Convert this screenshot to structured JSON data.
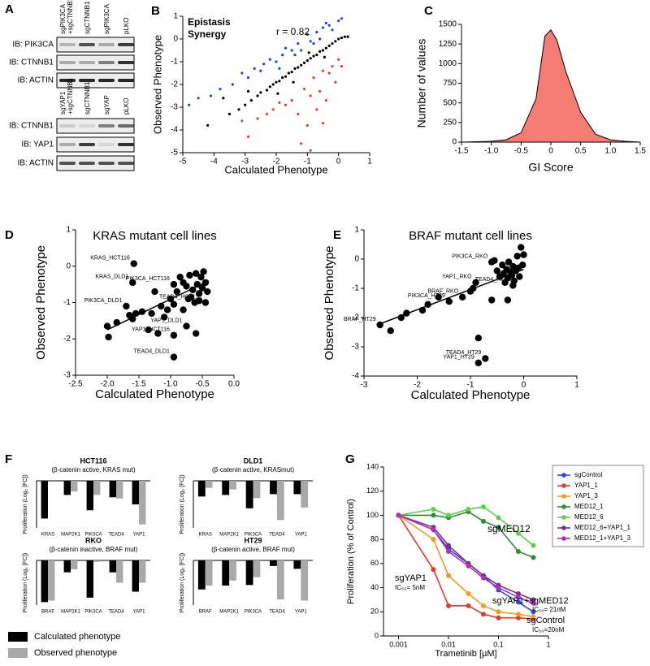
{
  "blots": {
    "panel": "A",
    "groups": [
      {
        "lanes": [
          [
            "sgPIK3CA",
            "+sgCTNNB1"
          ],
          [
            "sgCTNNB1"
          ],
          [
            "sgPIK3CA"
          ],
          [
            "pLKO"
          ]
        ],
        "rows": [
          "IB: PIK3CA",
          "IB: CTNNB1",
          "IB: ACTIN"
        ]
      },
      {
        "lanes": [
          [
            "sgYAP1",
            "+sgCTNNB1"
          ],
          [
            "sgCTNNB1"
          ],
          [
            "sgYAP"
          ],
          [
            "pLKO"
          ]
        ],
        "rows": [
          "IB: CTNNB1",
          "IB: YAP1",
          "IB: ACTIN"
        ]
      }
    ]
  },
  "chart_data": [
    {
      "type": "scatter",
      "panel": "B",
      "xlabel": "Calculated Phenotype",
      "ylabel": "Observed Phenotype",
      "annotation": "r = 0.82",
      "xlim": [
        -5,
        1
      ],
      "ylim": [
        -5,
        1
      ],
      "xticks": [
        -5,
        -4,
        -3,
        -2,
        -1,
        0,
        1
      ],
      "yticks": [
        -5,
        -4,
        -3,
        -2,
        -1,
        0,
        1
      ],
      "series": [
        {
          "color": "#000000",
          "x": [
            -4.2,
            -3.5,
            -3.2,
            -3,
            -2.8,
            -2.6,
            -2.5,
            -2.3,
            -2.2,
            -2.1,
            -2,
            -1.9,
            -1.8,
            -1.7,
            -1.6,
            -1.5,
            -1.4,
            -1.3,
            -1.2,
            -1.1,
            -1,
            -0.9,
            -0.8,
            -0.7,
            -0.6,
            -0.5,
            -0.4,
            -0.3,
            -0.2,
            -0.1,
            0,
            0.1,
            0.2,
            0.3,
            -3.7,
            -2.9,
            -1.95,
            -1.45,
            -0.95,
            -0.45
          ],
          "values": [
            -3.8,
            -3.3,
            -3.1,
            -2.9,
            -2.7,
            -2.5,
            -2.35,
            -2.25,
            -2.1,
            -2,
            -1.9,
            -1.85,
            -1.7,
            -1.65,
            -1.5,
            -1.45,
            -1.3,
            -1.25,
            -1.15,
            -1.05,
            -0.95,
            -0.85,
            -0.75,
            -0.7,
            -0.55,
            -0.5,
            -0.4,
            -0.3,
            -0.2,
            -0.1,
            0,
            0.05,
            0.1,
            0.1,
            -2.6,
            -2.3,
            -2.4,
            -1.9,
            -0.6,
            -0.8
          ]
        },
        {
          "name": "Epistasis",
          "color": "#2342e0",
          "x": [
            -4.8,
            -4.5,
            -4.1,
            -3.8,
            -3.4,
            -3.1,
            -2.9,
            -2.7,
            -2.5,
            -2.4,
            -2.2,
            -2,
            -1.8,
            -1.7,
            -1.5,
            -1.3,
            -1.2,
            -1,
            -0.9,
            -0.7,
            -0.6,
            -0.5,
            -0.3,
            -0.2,
            0,
            0.1,
            -1.9,
            -1.4,
            -0.8,
            -0.4
          ],
          "values": [
            -2.9,
            -2.6,
            -2.5,
            -2.2,
            -2,
            -1.5,
            -1.7,
            -1.3,
            -1.4,
            -1.1,
            -0.9,
            -1.0,
            -0.7,
            -0.4,
            -0.5,
            -0.2,
            -0.5,
            0.2,
            -0.1,
            0.3,
            0,
            0.5,
            0.6,
            0.4,
            0.8,
            0.9,
            -1.3,
            -0.7,
            -0.2,
            0.7
          ]
        },
        {
          "name": "Synergy",
          "color": "#e8402a",
          "x": [
            -3.1,
            -2.9,
            -2.6,
            -2.3,
            -2.1,
            -1.9,
            -1.7,
            -1.5,
            -1.3,
            -1.1,
            -1,
            -0.9,
            -0.8,
            -0.7,
            -0.6,
            -0.5,
            -0.4,
            -0.3,
            -0.2,
            -0.1,
            0,
            0.1,
            -1.2,
            -0.9,
            -0.5
          ],
          "values": [
            -3.6,
            -4.3,
            -3.5,
            -3.3,
            -3.1,
            -2.8,
            -2.9,
            -2.7,
            -3.3,
            -2.2,
            -3.8,
            -2.5,
            -1.7,
            -3.1,
            -2.3,
            -1.4,
            -2.7,
            -1.5,
            -1.2,
            -1.9,
            -0.9,
            -1.2,
            -4.6,
            -4.9,
            -3.7
          ]
        }
      ]
    },
    {
      "type": "area",
      "panel": "C",
      "xlabel": "GI Score",
      "ylabel": "Number of values",
      "color": "#f47c72",
      "xlim": [
        -1.5,
        1.5
      ],
      "ylim": [
        0,
        1500
      ],
      "xticks": [
        -1.5,
        {
          "value": -1,
          "label": "-1.0"
        },
        -0.5,
        0,
        0.5,
        {
          "value": 1,
          "label": "1.0"
        },
        1.5
      ],
      "yticks": [
        0,
        250,
        500,
        750,
        1000,
        1250,
        1500
      ],
      "x": [
        -1.5,
        -1.25,
        -1,
        -0.75,
        -0.5,
        -0.25,
        -0.1,
        0,
        0.1,
        0.25,
        0.5,
        0.75,
        1,
        1.25,
        1.5
      ],
      "values": [
        0,
        5,
        10,
        30,
        120,
        550,
        1350,
        1430,
        1300,
        900,
        380,
        100,
        30,
        10,
        0
      ]
    },
    {
      "type": "scatter",
      "panel": "D",
      "title": "KRAS mutant cell lines",
      "xlabel": "Calculated Phenotype",
      "ylabel": "Observed Phenotype",
      "xlim": [
        -2.5,
        0
      ],
      "ylim": [
        -3,
        1
      ],
      "xticks": [
        -2.5,
        {
          "value": -2,
          "label": "-2.0"
        },
        -1.5,
        {
          "value": -1,
          "label": "-1.0"
        },
        -0.5,
        {
          "value": 0,
          "label": "0.0"
        }
      ],
      "yticks": [
        -3,
        -2,
        -1,
        0,
        1
      ],
      "trendline": {
        "x": [
          -2,
          -0.4
        ],
        "values": [
          -1.75,
          -0.4
        ]
      },
      "series": [
        {
          "color": "#000000",
          "x": [
            -1.58,
            -1.6,
            -0.95,
            -0.45,
            -1.7,
            -0.75,
            -0.95,
            -0.95,
            -2.0,
            -1.98,
            -1.85,
            -1.65,
            -1.6,
            -1.55,
            -1.45,
            -1.35,
            -1.3,
            -1.2,
            -1.15,
            -1.1,
            -1.05,
            -1.0,
            -0.95,
            -0.9,
            -0.85,
            -0.8,
            -0.75,
            -0.7,
            -0.68,
            -0.65,
            -0.6,
            -0.58,
            -0.55,
            -0.52,
            -0.5,
            -0.48,
            -0.45,
            -0.42,
            -0.6,
            -0.8,
            -1.25,
            -0.72,
            -0.62,
            -0.55
          ],
          "values": [
            0.07,
            -0.45,
            -0.5,
            -1.0,
            -1.1,
            -1.65,
            -1.9,
            -2.5,
            -1.65,
            -1.95,
            -1.55,
            -1.35,
            -1.45,
            -1.3,
            -1.25,
            -1.75,
            -1.3,
            -1.85,
            -1.1,
            -1.4,
            -1.2,
            -0.9,
            -1.05,
            -0.7,
            -0.3,
            -0.45,
            -0.55,
            -0.25,
            -0.85,
            -0.65,
            -0.2,
            -0.5,
            -0.75,
            -0.3,
            -0.6,
            -0.15,
            -0.45,
            -0.7,
            -1.85,
            -1.2,
            -0.7,
            -0.9,
            -1.0,
            -0.95
          ],
          "point_labels": [
            "KRAS_HCT116",
            "KRAS_DLD1",
            "PIK3CA_HCT116",
            "TEAD4_HCT116",
            "PIK3CA_DLD1",
            "YAP1_DLD1",
            "YAP1_HCT116",
            "TEAD4_DLD1",
            null,
            null,
            null,
            null,
            null,
            null,
            null,
            null,
            null,
            null,
            null,
            null,
            null,
            null,
            null,
            null,
            null,
            null,
            null,
            null,
            null,
            null,
            null,
            null,
            null,
            null,
            null,
            null,
            null,
            null,
            null,
            null,
            null,
            null,
            null,
            null
          ]
        }
      ]
    },
    {
      "type": "scatter",
      "panel": "E",
      "title": "BRAF mutant cell lines",
      "xlabel": "Calculated Phenotype",
      "ylabel": "Observed Phenotype",
      "xlim": [
        -3,
        1
      ],
      "ylim": [
        -4,
        1
      ],
      "xticks": [
        -3,
        -2,
        -1,
        0,
        1
      ],
      "yticks": [
        -4,
        -3,
        -2,
        -1,
        0,
        1
      ],
      "trendline": {
        "x": [
          -2.75,
          0
        ],
        "values": [
          -2.25,
          -0.35
        ]
      },
      "series": [
        {
          "color": "#000000",
          "x": [
            -0.6,
            -0.9,
            -0.2,
            -1.4,
            -1.15,
            -2.7,
            -0.72,
            -0.85,
            -0.85,
            -2.5,
            -2.3,
            -2.2,
            -1.9,
            -1.8,
            -1.6,
            -1.0,
            -0.95,
            -0.6,
            -0.5,
            -0.45,
            -0.4,
            -0.38,
            -0.35,
            -0.32,
            -0.3,
            -0.28,
            -0.25,
            -0.22,
            -0.2,
            -0.18,
            -0.15,
            -0.12,
            -0.1,
            -0.08,
            -0.05,
            -0.02,
            0.0,
            -0.55,
            -0.3
          ],
          "values": [
            -0.1,
            -0.8,
            -0.9,
            -1.45,
            -1.3,
            -2.25,
            -3.4,
            -3.55,
            -2.7,
            -2.45,
            -2.0,
            -1.85,
            -1.75,
            -1.55,
            -1.3,
            -1.1,
            -1.0,
            -1.4,
            -0.4,
            -0.6,
            -0.2,
            -0.5,
            -0.8,
            -0.35,
            -0.65,
            -0.1,
            -0.45,
            -0.55,
            -0.25,
            -0.75,
            -0.4,
            0.1,
            -0.3,
            -0.6,
            0.4,
            -0.2,
            0.15,
            -0.05,
            -1.4
          ],
          "point_labels": [
            "PIK3CA_RKO",
            "YAP1_RKO",
            "TEAD4_RKO",
            "PIK3CA_HT29",
            "BRAF_RKO",
            "BRAF_HT29",
            "TEAD4_HT29",
            "YAP1_HT29",
            null,
            null,
            null,
            null,
            null,
            null,
            null,
            null,
            null,
            null,
            null,
            null,
            null,
            null,
            null,
            null,
            null,
            null,
            null,
            null,
            null,
            null,
            null,
            null,
            null,
            null,
            null,
            null,
            null,
            null,
            null
          ]
        }
      ]
    },
    {
      "type": "bar",
      "panel": "F",
      "title": "HCT116",
      "subtitle": "(β-catenin active, KRAS mut)",
      "ylabel": "Proliferation (Log₂ [FC])",
      "ylim": [
        -2,
        0
      ],
      "categories": [
        "KRAS",
        "MAP2K1",
        "PIK3CA",
        "TEAD4",
        "YAP1"
      ],
      "series": [
        {
          "name": "Calculated phenotype",
          "color": "#000000",
          "values": [
            -1.6,
            -0.6,
            -1.25,
            -0.7,
            -1.0
          ]
        },
        {
          "name": "Observed phenotype",
          "color": "#a9a9a9",
          "values": [
            0,
            -0.45,
            -0.6,
            -0.75,
            -1.85
          ]
        }
      ]
    },
    {
      "type": "bar",
      "title": "DLD1",
      "subtitle": "(β-catenin active, KRASmut)",
      "ylabel": "Proliferation (Log₂ [FC])",
      "ylim": [
        -3,
        0
      ],
      "categories": [
        "KRAS",
        "MAP2K1",
        "PIK3CA",
        "TEAD4",
        "YAP1"
      ],
      "series": [
        {
          "color": "#000000",
          "values": [
            -1.0,
            -0.9,
            -1.75,
            -0.85,
            -0.85
          ]
        },
        {
          "color": "#a9a9a9",
          "values": [
            -0.45,
            -0.55,
            -1.1,
            -2.5,
            -1.7
          ]
        }
      ]
    },
    {
      "type": "bar",
      "title": "RKO",
      "subtitle": "(β-catenin inactive, BRAF mut)",
      "ylabel": "Proliferation (Log₂ [FC])",
      "ylim": [
        -1.5,
        0
      ],
      "categories": [
        "BRAF",
        "MAP2K1",
        "PIK3CA",
        "TEAD4",
        "YAP1"
      ],
      "series": [
        {
          "color": "#000000",
          "values": [
            -1.4,
            -0.4,
            -1.25,
            -0.4,
            -1.05
          ]
        },
        {
          "color": "#a9a9a9",
          "values": [
            -1.35,
            -0.3,
            -0.05,
            -0.75,
            -0.75
          ]
        }
      ]
    },
    {
      "type": "bar",
      "title": "HT29",
      "subtitle": "(β-catenin active, BRAF mut)",
      "ylabel": "Proliferation (Log₂ [FC])",
      "ylim": [
        -4,
        0
      ],
      "categories": [
        "BRAF",
        "MAP2K1",
        "PIK3CA",
        "TEAD4",
        "YAP1"
      ],
      "series": [
        {
          "color": "#000000",
          "values": [
            -2.6,
            -2.25,
            -2.2,
            -0.5,
            -0.75
          ]
        },
        {
          "color": "#a9a9a9",
          "values": [
            -2.25,
            -1.8,
            -1.5,
            -3.5,
            -3.6
          ]
        }
      ]
    },
    {
      "type": "line",
      "panel": "G",
      "xlabel": "Trametinib [µM]",
      "ylabel": "Proliferation (% of Control)",
      "xscale": "log",
      "xlim": [
        0.0005,
        1
      ],
      "ylim": [
        0,
        140
      ],
      "xticks": [
        0.001,
        0.01,
        0.1,
        1
      ],
      "yticks": [
        0,
        20,
        40,
        60,
        80,
        100,
        120,
        140
      ],
      "x": [
        0.001,
        0.005,
        0.01,
        0.025,
        0.05,
        0.1,
        0.25,
        0.5
      ],
      "series": [
        {
          "name": "sgControl",
          "color": "#2b4bd8",
          "values": [
            100,
            88,
            72,
            60,
            50,
            38,
            28,
            20
          ]
        },
        {
          "name": "YAP1_1",
          "color": "#e8382a",
          "values": [
            100,
            55,
            25,
            25,
            18,
            15,
            15,
            14
          ]
        },
        {
          "name": "YAP1_3",
          "color": "#f39a1f",
          "values": [
            100,
            80,
            50,
            35,
            25,
            20,
            18,
            16
          ]
        },
        {
          "name": "MED12_1",
          "color": "#2e8b2e",
          "values": [
            100,
            100,
            98,
            103,
            95,
            90,
            70,
            65
          ]
        },
        {
          "name": "MED12_6",
          "color": "#5bd24a",
          "values": [
            100,
            105,
            100,
            105,
            107,
            98,
            85,
            75
          ]
        },
        {
          "name": "MED12_6+YAP1_1",
          "color": "#7a2b9e",
          "values": [
            100,
            90,
            75,
            60,
            50,
            42,
            35,
            30
          ]
        },
        {
          "name": "MED12_1+YAP1_3",
          "color": "#b12fb4",
          "values": [
            100,
            88,
            70,
            58,
            48,
            40,
            32,
            27
          ]
        }
      ],
      "annotations": [
        {
          "text": "sgMED12",
          "color": "#2e8b2e"
        },
        {
          "text": "sgYAP1",
          "color": "#e8382a"
        },
        {
          "text": "IC₅₀= 5nM",
          "color": "#e8382a"
        },
        {
          "text": "sgYAP1+sgMED12",
          "color": "#8e2aa0"
        },
        {
          "text": "IC₅₀= 21nM",
          "color": "#8e2aa0"
        },
        {
          "text": "sgControl",
          "color": "#2b4bd8"
        },
        {
          "text": "IC₅₀=20nM",
          "color": "#2b4bd8"
        }
      ]
    }
  ]
}
